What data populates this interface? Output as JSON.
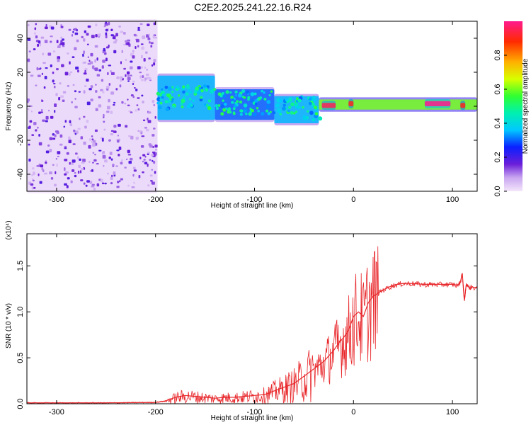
{
  "title": "C2E2.2025.241.22.16.R24",
  "chart_data": [
    {
      "type": "heatmap",
      "xlabel": "Height of straight line (km)",
      "ylabel": "Frequency (Hz)",
      "xlim": [
        -330,
        125
      ],
      "ylim": [
        -50,
        50
      ],
      "xticks": [
        -300,
        -200,
        -100,
        0,
        100
      ],
      "yticks": [
        -40,
        -20,
        0,
        20,
        40
      ],
      "colorbar": {
        "label": "Normalized spectral amplitude",
        "range": [
          0.0,
          1.0
        ],
        "ticks": [
          "0.0",
          "0.2",
          "0.4",
          "0.6",
          "0.8"
        ]
      },
      "regions": [
        {
          "x_range": [
            -330,
            -198
          ],
          "freq_range": [
            -50,
            50
          ],
          "level": 0.05
        },
        {
          "x_range": [
            -198,
            -140
          ],
          "freq_range": [
            -8,
            18
          ],
          "level": 0.35
        },
        {
          "x_range": [
            -140,
            -80
          ],
          "freq_range": [
            -8,
            10
          ],
          "level": 0.3
        },
        {
          "x_range": [
            -80,
            -35
          ],
          "freq_range": [
            -10,
            6
          ],
          "level": 0.35
        },
        {
          "x_range": [
            -35,
            125
          ],
          "freq_range": [
            -2,
            4
          ],
          "level": 0.6
        },
        {
          "x_range": [
            -32,
            -18
          ],
          "freq_range": [
            -1,
            2
          ],
          "level": 0.95
        },
        {
          "x_range": [
            -5,
            0
          ],
          "freq_range": [
            0,
            3
          ],
          "level": 0.9
        },
        {
          "x_range": [
            72,
            98
          ],
          "freq_range": [
            0,
            3
          ],
          "level": 1.0
        },
        {
          "x_range": [
            108,
            113
          ],
          "freq_range": [
            -1,
            2
          ],
          "level": 0.9
        }
      ]
    },
    {
      "type": "line",
      "xlabel": "Height of straight line (km)",
      "ylabel": "SNR (10 * v/v)",
      "y_multiplier": "(x10⁴)",
      "xlim": [
        -330,
        125
      ],
      "ylim": [
        0,
        1.85
      ],
      "xticks": [
        -300,
        -200,
        -100,
        0,
        100
      ],
      "yticks": [
        "0.0",
        "0.5",
        "1.0",
        "1.5"
      ],
      "color": "#e8262a",
      "series": [
        {
          "x": [
            -330,
            -300,
            -250,
            -200,
            -190,
            -180,
            -170,
            -160,
            -150,
            -140,
            -130,
            -120,
            -110,
            -100,
            -90,
            -80,
            -70,
            -60,
            -50,
            -40,
            -35,
            -30,
            -25,
            -20,
            -15,
            -10,
            -5,
            0,
            5,
            10,
            15,
            20,
            30,
            40,
            50,
            60,
            70,
            80,
            90,
            100,
            105,
            108,
            110,
            112,
            114,
            116,
            120,
            125
          ],
          "y": [
            0.01,
            0.01,
            0.01,
            0.015,
            0.03,
            0.07,
            0.09,
            0.08,
            0.07,
            0.06,
            0.07,
            0.07,
            0.08,
            0.09,
            0.1,
            0.14,
            0.18,
            0.22,
            0.3,
            0.38,
            0.42,
            0.46,
            0.52,
            0.58,
            0.66,
            0.72,
            0.8,
            0.95,
            1.0,
            0.95,
            1.1,
            1.17,
            1.24,
            1.29,
            1.31,
            1.31,
            1.3,
            1.3,
            1.3,
            1.3,
            1.29,
            1.32,
            1.42,
            1.12,
            1.3,
            1.27,
            1.27,
            1.26
          ]
        }
      ]
    }
  ]
}
